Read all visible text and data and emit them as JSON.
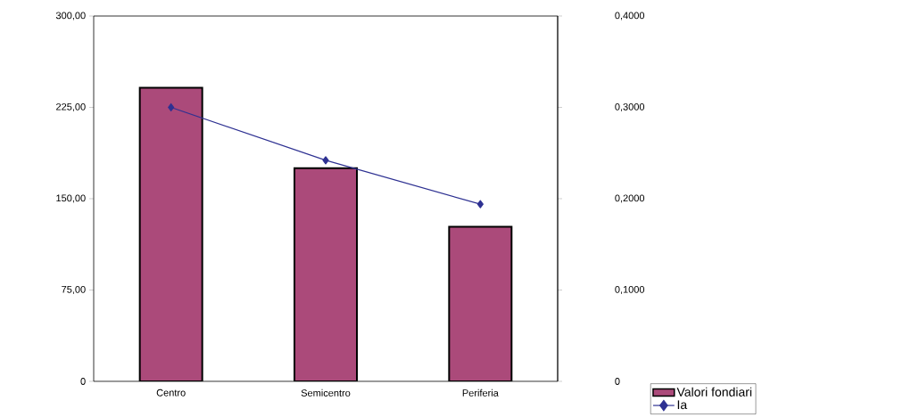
{
  "chart_data": {
    "type": "bar",
    "categories": [
      "Centro",
      "Semicentro",
      "Periferia"
    ],
    "series": [
      {
        "name": "Valori fondiari",
        "color": "#ab4a7a",
        "values": [
          241,
          175,
          127
        ]
      },
      {
        "name": "Ia",
        "type": "line",
        "axis": "y2",
        "color": "#2e3192",
        "marker": "diamond",
        "values": [
          0.3,
          0.242,
          0.194
        ]
      }
    ],
    "ylim": [
      0,
      300
    ],
    "yticks": [
      0,
      {
        "value": 75,
        "label": "75,00"
      },
      {
        "value": 150,
        "label": "150,00"
      },
      {
        "value": 225,
        "label": "225,00"
      },
      {
        "value": 300,
        "label": "300,00"
      }
    ],
    "y2lim": [
      0,
      0.4
    ],
    "y2ticks": [
      0,
      {
        "value": 0.1,
        "label": "0,1000"
      },
      {
        "value": 0.2,
        "label": "0,2000"
      },
      {
        "value": 0.3,
        "label": "0,3000"
      },
      {
        "value": 0.4,
        "label": "0,4000"
      }
    ],
    "legend": "bottom right",
    "grid": false
  }
}
